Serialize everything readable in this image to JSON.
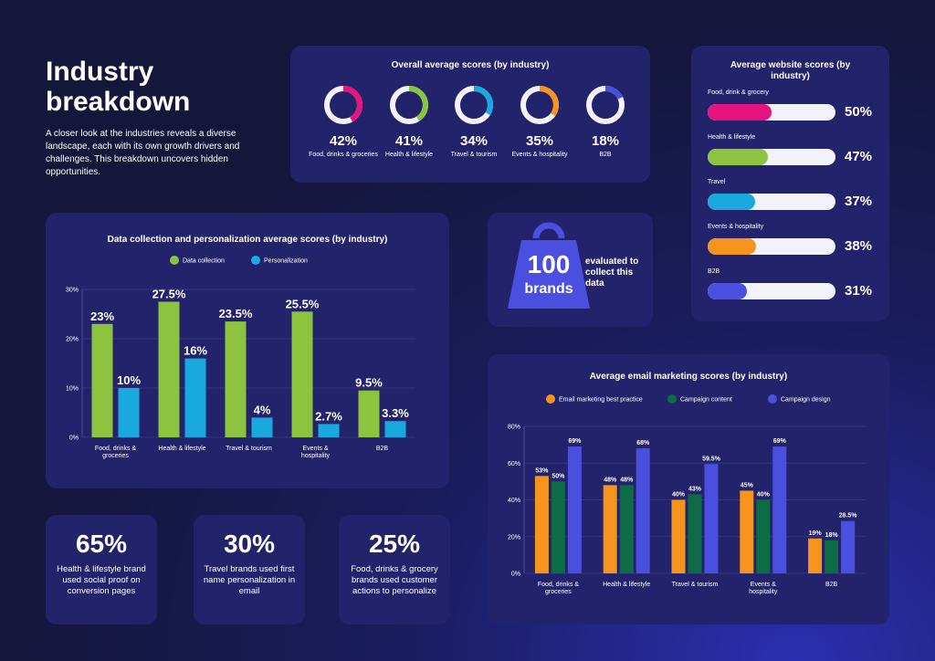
{
  "hero": {
    "title": "Industry breakdown",
    "text": "A closer look at the industries reveals a diverse landscape, each with its own growth drivers and challenges. This breakdown uncovers hidden opportunities."
  },
  "brands": {
    "number": "100",
    "word": "brands",
    "caption": "evaluated to collect this data"
  },
  "stats": [
    {
      "value": "65%",
      "text": "Health & lifestyle brand used social proof on conversion pages"
    },
    {
      "value": "30%",
      "text": "Travel brands used first name personalization in email"
    },
    {
      "value": "25%",
      "text": "Food, drinks & grocery brands used customer actions to personalize"
    }
  ],
  "colors": {
    "pink": "#e6127d",
    "green": "#8cc43f",
    "blue": "#19a9df",
    "orange": "#f7941d",
    "purple": "#4a4fdf",
    "darkgreen": "#0d6b46",
    "track": "#f2f2fa",
    "panel": "#23236b"
  },
  "chart_data": [
    {
      "type": "pie",
      "title": "Overall average scores (by industry)",
      "categories": [
        "Food, drinks & groceries",
        "Health & lifestyle",
        "Travel & tourism",
        "Events & hospitality",
        "B2B"
      ],
      "values": [
        42,
        41,
        34,
        35,
        18
      ],
      "labels": [
        "42%",
        "41%",
        "34%",
        "35%",
        "18%"
      ],
      "colors": [
        "#e6127d",
        "#8cc43f",
        "#19a9df",
        "#f7941d",
        "#4a4fdf"
      ]
    },
    {
      "type": "bar",
      "title": "Average website scores (by industry)",
      "categories": [
        "Food, drink & grocery",
        "Health & lifestyle",
        "Travel",
        "Events & hospitality",
        "B2B"
      ],
      "values": [
        50,
        47,
        37,
        38,
        31
      ],
      "labels": [
        "50%",
        "47%",
        "37%",
        "38%",
        "31%"
      ],
      "colors": [
        "#e6127d",
        "#8cc43f",
        "#19a9df",
        "#f7941d",
        "#4a4fdf"
      ]
    },
    {
      "type": "bar",
      "title": "Data collection and personalization average scores (by industry)",
      "categories": [
        "Food, drinks & groceries",
        "Health & lifestyle",
        "Travel & tourism",
        "Events & hospitality",
        "B2B"
      ],
      "ylim": [
        0,
        30
      ],
      "yticks": [
        "0%",
        "10%",
        "20%",
        "30%"
      ],
      "legend": "top",
      "series": [
        {
          "name": "Data collection",
          "values": [
            23,
            27.5,
            23.5,
            25.5,
            9.5
          ],
          "labels": [
            "23%",
            "27.5%",
            "23.5%",
            "25.5%",
            "9.5%"
          ],
          "color": "#8cc43f"
        },
        {
          "name": "Personalization",
          "values": [
            10,
            16,
            4,
            2.7,
            3.3
          ],
          "labels": [
            "10%",
            "16%",
            "4%",
            "2.7%",
            "3.3%"
          ],
          "color": "#19a9df"
        }
      ]
    },
    {
      "type": "bar",
      "title": "Average email marketing scores (by industry)",
      "categories": [
        "Food, drinks & groceries",
        "Health & lifestyle",
        "Travel & tourism",
        "Events & hospitality",
        "B2B"
      ],
      "ylim": [
        0,
        80
      ],
      "yticks": [
        "0%",
        "20%",
        "40%",
        "60%",
        "80%"
      ],
      "legend": "top",
      "series": [
        {
          "name": "Email marketing best practice",
          "values": [
            53,
            48,
            40,
            45,
            19
          ],
          "labels": [
            "53%",
            "48%",
            "40%",
            "45%",
            "19%"
          ],
          "color": "#f7941d"
        },
        {
          "name": "Campaign content",
          "values": [
            50,
            48,
            43,
            40,
            18
          ],
          "labels": [
            "50%",
            "48%",
            "43%",
            "40%",
            "18%"
          ],
          "color": "#0d6b46"
        },
        {
          "name": "Campaign design",
          "values": [
            69,
            68,
            59.5,
            69,
            28.5
          ],
          "labels": [
            "69%",
            "68%",
            "59.5%",
            "69%",
            "28.5%"
          ],
          "color": "#4a4fdf"
        }
      ]
    }
  ]
}
